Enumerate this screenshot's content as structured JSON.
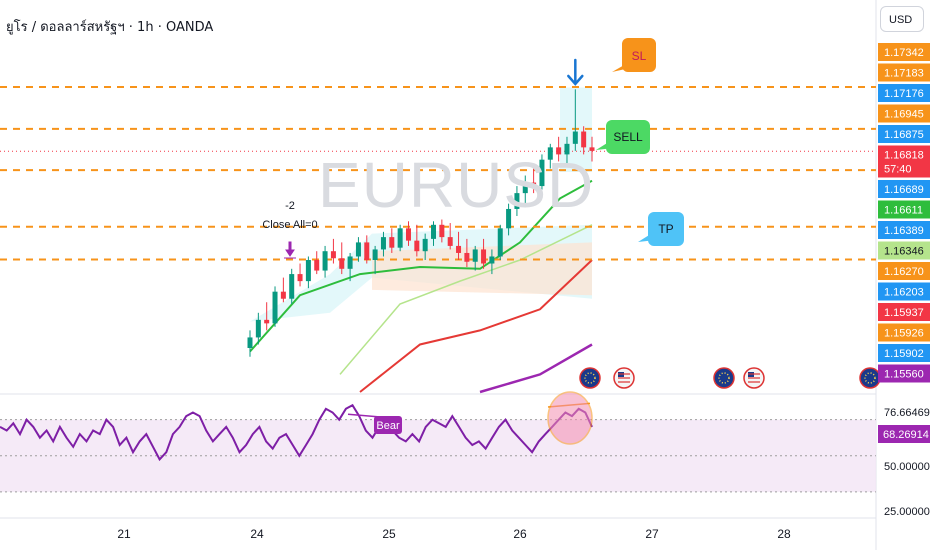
{
  "header": {
    "title": "ยูโร / ดอลลาร์สหรัฐฯ · 1h · OANDA",
    "currency_button": "USD",
    "watermark": "EURUSD"
  },
  "chart_data": [
    {
      "type": "candlestick",
      "title": "ยูโร / ดอลลาร์สหรัฐฯ · 1h · OANDA",
      "symbol": "EURUSD",
      "timeframe": "1h",
      "x_ticks": [
        "21",
        "24",
        "25",
        "26",
        "27",
        "28"
      ],
      "ylim": [
        1.1545,
        1.1745
      ],
      "last_price": 1.16818,
      "countdown": "57:40",
      "price_labels": [
        {
          "value": "1.17342",
          "color": "#f7931a"
        },
        {
          "value": "1.17183",
          "color": "#f7931a"
        },
        {
          "value": "1.17176",
          "color": "#2196f3"
        },
        {
          "value": "1.16945",
          "color": "#f7931a"
        },
        {
          "value": "1.16875",
          "color": "#2196f3"
        },
        {
          "value": "1.16818",
          "color": "#f23645"
        },
        {
          "value": "1.16689",
          "color": "#2196f3"
        },
        {
          "value": "1.16611",
          "color": "#2ebd3c"
        },
        {
          "value": "1.16389",
          "color": "#2196f3"
        },
        {
          "value": "1.16346",
          "color": "#b5e48c"
        },
        {
          "value": "1.16270",
          "color": "#f7931a"
        },
        {
          "value": "1.16203",
          "color": "#2196f3"
        },
        {
          "value": "1.15937",
          "color": "#f23645"
        },
        {
          "value": "1.15926",
          "color": "#f7931a"
        },
        {
          "value": "1.15902",
          "color": "#2196f3"
        },
        {
          "value": "1.15560",
          "color": "#9c27b0"
        }
      ],
      "horizontal_levels": [
        1.17183,
        1.16945,
        1.16711,
        1.16389,
        1.16203
      ],
      "annotations": [
        {
          "text": "SL",
          "color": "#f7931a"
        },
        {
          "text": "SELL",
          "color": "#4cd964"
        },
        {
          "text": "TP",
          "color": "#4fc3f7"
        },
        {
          "text": "-2",
          "color": "#131722"
        },
        {
          "text": "Close All=0",
          "color": "#131722"
        }
      ],
      "moving_averages": [
        {
          "color": "#2ebd3c"
        },
        {
          "color": "#b5e48c"
        },
        {
          "color": "#e53935"
        },
        {
          "color": "#9c27b0"
        }
      ],
      "candles": [
        [
          1.157,
          1.158,
          1.1565,
          1.1576
        ],
        [
          1.1576,
          1.159,
          1.1572,
          1.1586
        ],
        [
          1.1586,
          1.1596,
          1.158,
          1.1584
        ],
        [
          1.1584,
          1.1605,
          1.1582,
          1.1602
        ],
        [
          1.1602,
          1.161,
          1.1596,
          1.1598
        ],
        [
          1.1598,
          1.1615,
          1.1595,
          1.1612
        ],
        [
          1.1612,
          1.1618,
          1.1605,
          1.1608
        ],
        [
          1.1608,
          1.1622,
          1.1604,
          1.162
        ],
        [
          1.162,
          1.1625,
          1.1612,
          1.1614
        ],
        [
          1.1614,
          1.1628,
          1.161,
          1.1625
        ],
        [
          1.1625,
          1.1632,
          1.1618,
          1.1621
        ],
        [
          1.1621,
          1.163,
          1.1612,
          1.1615
        ],
        [
          1.1615,
          1.1624,
          1.1608,
          1.1622
        ],
        [
          1.1622,
          1.1633,
          1.1619,
          1.163
        ],
        [
          1.163,
          1.1634,
          1.1618,
          1.162
        ],
        [
          1.162,
          1.1628,
          1.1612,
          1.1626
        ],
        [
          1.1626,
          1.1636,
          1.1622,
          1.1633
        ],
        [
          1.1633,
          1.1638,
          1.1624,
          1.1627
        ],
        [
          1.1627,
          1.164,
          1.1625,
          1.1638
        ],
        [
          1.1638,
          1.1642,
          1.1628,
          1.1631
        ],
        [
          1.1631,
          1.164,
          1.1622,
          1.1625
        ],
        [
          1.1625,
          1.1635,
          1.162,
          1.1632
        ],
        [
          1.1632,
          1.1642,
          1.1628,
          1.164
        ],
        [
          1.164,
          1.1643,
          1.163,
          1.1633
        ],
        [
          1.1633,
          1.1641,
          1.1626,
          1.1628
        ],
        [
          1.1628,
          1.1636,
          1.162,
          1.1624
        ],
        [
          1.1624,
          1.1632,
          1.1616,
          1.1619
        ],
        [
          1.1619,
          1.1628,
          1.1614,
          1.1626
        ],
        [
          1.1626,
          1.1632,
          1.1615,
          1.1618
        ],
        [
          1.1618,
          1.1626,
          1.1612,
          1.1622
        ],
        [
          1.1622,
          1.164,
          1.162,
          1.1638
        ],
        [
          1.1638,
          1.1652,
          1.1634,
          1.1649
        ],
        [
          1.1649,
          1.1662,
          1.1645,
          1.1658
        ],
        [
          1.1658,
          1.1668,
          1.165,
          1.1664
        ],
        [
          1.1664,
          1.1672,
          1.1658,
          1.1662
        ],
        [
          1.1662,
          1.168,
          1.166,
          1.1677
        ],
        [
          1.1677,
          1.1686,
          1.1672,
          1.1684
        ],
        [
          1.1684,
          1.169,
          1.1676,
          1.168
        ],
        [
          1.168,
          1.169,
          1.1674,
          1.1686
        ],
        [
          1.1686,
          1.1717,
          1.1682,
          1.1693
        ],
        [
          1.1693,
          1.1696,
          1.168,
          1.1684
        ],
        [
          1.1684,
          1.169,
          1.1676,
          1.1682
        ]
      ]
    },
    {
      "type": "line",
      "indicator": "RSI",
      "ylim": [
        20,
        82
      ],
      "y_ticks": [
        "76.66469",
        "50.00000",
        "25.00000"
      ],
      "current_value": "68.26914",
      "label": "Bear",
      "values": [
        66,
        64,
        68,
        62,
        70,
        66,
        60,
        64,
        58,
        66,
        60,
        55,
        62,
        58,
        64,
        62,
        70,
        66,
        56,
        60,
        52,
        58,
        62,
        55,
        48,
        52,
        62,
        66,
        72,
        74,
        72,
        64,
        58,
        62,
        66,
        60,
        52,
        56,
        62,
        66,
        58,
        54,
        60,
        62,
        56,
        50,
        56,
        62,
        70,
        76,
        74,
        70,
        76,
        78,
        72,
        64,
        60,
        66,
        70,
        64,
        60,
        58,
        62,
        58,
        66,
        70,
        68,
        66,
        72,
        66,
        60,
        56,
        58,
        54,
        60,
        66,
        70,
        64,
        60,
        56,
        52,
        58,
        62,
        66,
        70,
        74,
        72,
        76,
        74,
        66
      ]
    }
  ]
}
